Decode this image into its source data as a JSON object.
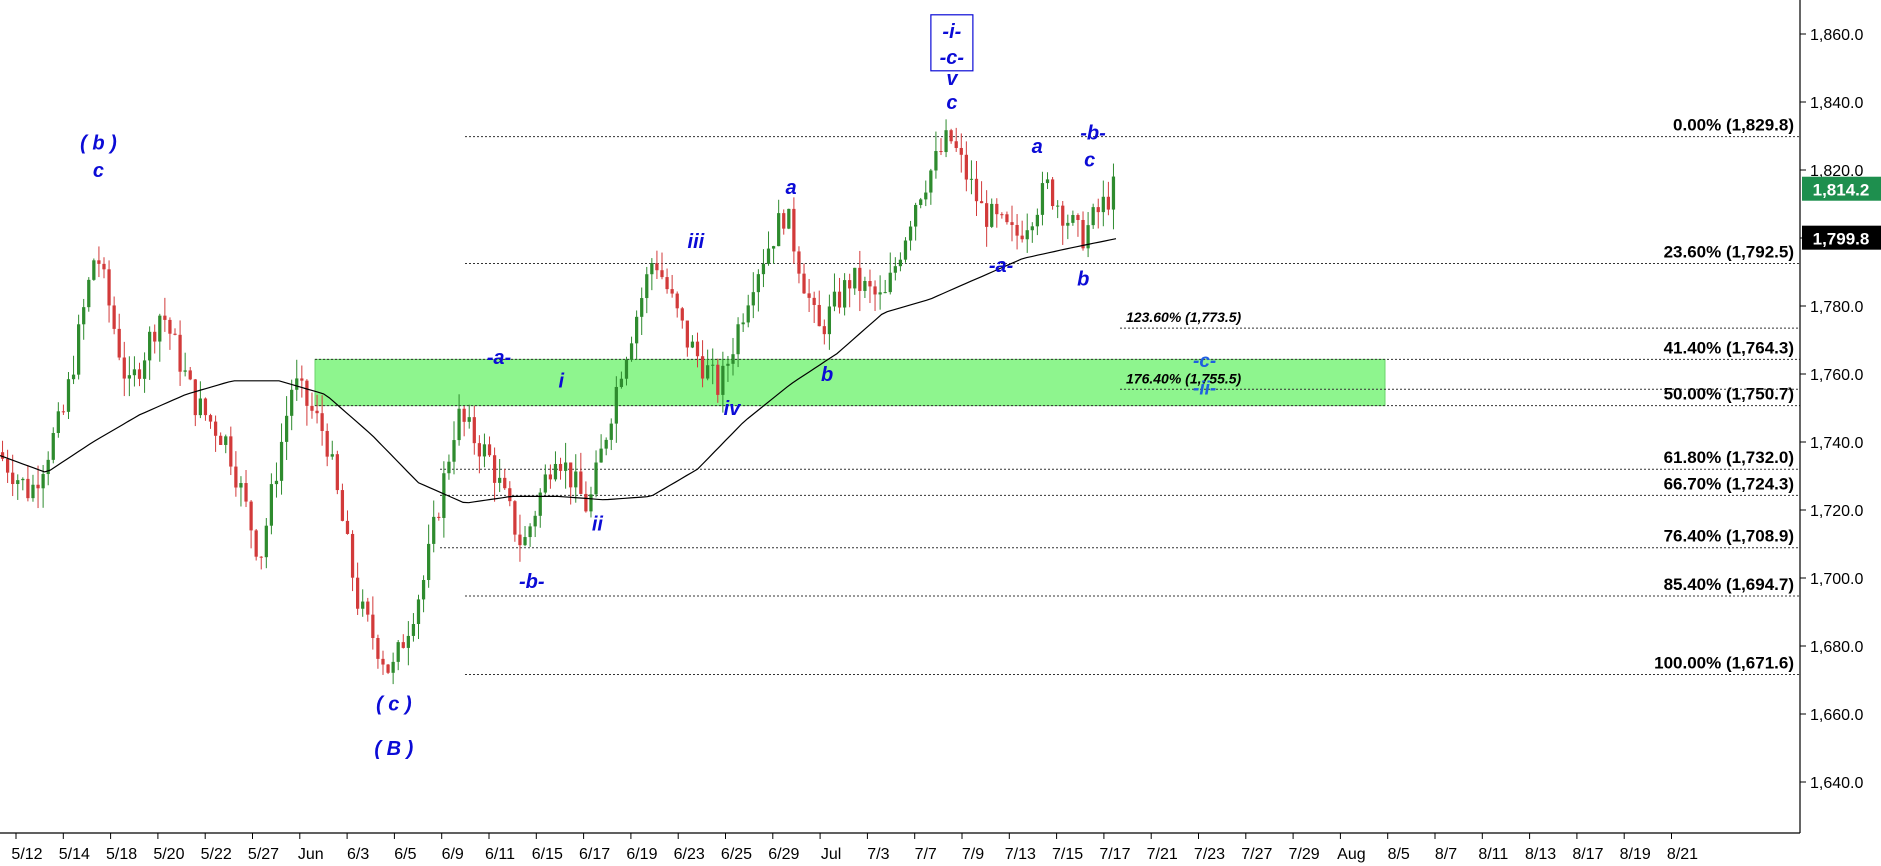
{
  "chart_data": {
    "type": "line",
    "colors": {
      "up": "#2e8b2e",
      "down": "#d23a3a",
      "zone": "#8ef58e",
      "waves": "#0b0bd6",
      "ma": "#000000"
    },
    "x_tick_labels": [
      "5/12",
      "5/14",
      "5/18",
      "5/20",
      "5/22",
      "5/27",
      "Jun",
      "6/3",
      "6/5",
      "6/9",
      "6/11",
      "6/15",
      "6/17",
      "6/19",
      "6/23",
      "6/25",
      "6/29",
      "Jul",
      "7/3",
      "7/7",
      "7/9",
      "7/13",
      "7/15",
      "7/17",
      "7/21",
      "7/23",
      "7/27",
      "7/29",
      "Aug",
      "8/5",
      "8/7",
      "8/11",
      "8/13",
      "8/17",
      "8/19",
      "8/21"
    ],
    "ylim": [
      1625,
      1870
    ],
    "y_ticks": [
      1640,
      1660,
      1680,
      1700,
      1720,
      1740,
      1760,
      1780,
      1800,
      1820,
      1840,
      1860
    ],
    "y_tick_labels": [
      "1,640.0",
      "1,660.0",
      "1,680.0",
      "1,700.0",
      "1,720.0",
      "1,740.0",
      "1,760.0",
      "1,780.0",
      "1,800.0",
      "1,820.0",
      "1,840.0",
      "1,860.0"
    ],
    "price_path": [
      {
        "x": 0,
        "y": 1737
      },
      {
        "x": 1,
        "y": 1725
      },
      {
        "x": 2,
        "y": 1748
      },
      {
        "x": 3,
        "y": 1797
      },
      {
        "x": 4,
        "y": 1755
      },
      {
        "x": 5,
        "y": 1779
      },
      {
        "x": 6,
        "y": 1752
      },
      {
        "x": 7,
        "y": 1740
      },
      {
        "x": 8,
        "y": 1706
      },
      {
        "x": 9,
        "y": 1758
      },
      {
        "x": 10,
        "y": 1742
      },
      {
        "x": 11,
        "y": 1692
      },
      {
        "x": 12,
        "y": 1671.6
      },
      {
        "x": 13,
        "y": 1700
      },
      {
        "x": 14,
        "y": 1748
      },
      {
        "x": 15,
        "y": 1735
      },
      {
        "x": 16,
        "y": 1708.9
      },
      {
        "x": 17,
        "y": 1738
      },
      {
        "x": 18,
        "y": 1720
      },
      {
        "x": 19,
        "y": 1762
      },
      {
        "x": 20,
        "y": 1795
      },
      {
        "x": 21,
        "y": 1770
      },
      {
        "x": 22,
        "y": 1755.5
      },
      {
        "x": 23,
        "y": 1788
      },
      {
        "x": 24,
        "y": 1808
      },
      {
        "x": 25,
        "y": 1772
      },
      {
        "x": 26,
        "y": 1788
      },
      {
        "x": 27,
        "y": 1781
      },
      {
        "x": 28,
        "y": 1812
      },
      {
        "x": 29,
        "y": 1829.8
      },
      {
        "x": 30,
        "y": 1808
      },
      {
        "x": 31,
        "y": 1800
      },
      {
        "x": 32,
        "y": 1815
      },
      {
        "x": 33,
        "y": 1799.8
      },
      {
        "x": 34,
        "y": 1814.2
      }
    ],
    "moving_average": [
      {
        "x": 0,
        "y": 1736
      },
      {
        "x": 1,
        "y": 1731
      },
      {
        "x": 2,
        "y": 1740
      },
      {
        "x": 3,
        "y": 1748
      },
      {
        "x": 4,
        "y": 1754
      },
      {
        "x": 5,
        "y": 1758
      },
      {
        "x": 6,
        "y": 1758
      },
      {
        "x": 7,
        "y": 1754
      },
      {
        "x": 8,
        "y": 1742
      },
      {
        "x": 9,
        "y": 1728
      },
      {
        "x": 10,
        "y": 1722
      },
      {
        "x": 11,
        "y": 1724
      },
      {
        "x": 12,
        "y": 1724
      },
      {
        "x": 13,
        "y": 1723
      },
      {
        "x": 14,
        "y": 1724
      },
      {
        "x": 15,
        "y": 1732
      },
      {
        "x": 16,
        "y": 1746
      },
      {
        "x": 17,
        "y": 1757
      },
      {
        "x": 18,
        "y": 1766
      },
      {
        "x": 19,
        "y": 1778
      },
      {
        "x": 20,
        "y": 1782
      },
      {
        "x": 21,
        "y": 1788
      },
      {
        "x": 22,
        "y": 1794
      },
      {
        "x": 23,
        "y": 1797
      },
      {
        "x": 24,
        "y": 1799.8
      }
    ],
    "ma_start_index": 10,
    "fib_levels": [
      {
        "label": "0.00% (1,829.8)",
        "value": 1829.8
      },
      {
        "label": "23.60% (1,792.5)",
        "value": 1792.5
      },
      {
        "label": "41.40% (1,764.3)",
        "value": 1764.3
      },
      {
        "label": "50.00% (1,750.7)",
        "value": 1750.7
      },
      {
        "label": "61.80% (1,732.0)",
        "value": 1732.0
      },
      {
        "label": "66.70% (1,724.3)",
        "value": 1724.3
      },
      {
        "label": "76.40% (1,708.9)",
        "value": 1708.9
      },
      {
        "label": "85.40% (1,694.7)",
        "value": 1694.7
      },
      {
        "label": "100.00% (1,671.6)",
        "value": 1671.6
      }
    ],
    "extension_levels": [
      {
        "label": "123.60% (1,773.5)",
        "value": 1773.5
      },
      {
        "label": "176.40% (1,755.5)",
        "value": 1755.5
      }
    ],
    "target_zone": {
      "low": 1750.7,
      "high": 1764.3
    },
    "price_badges": [
      {
        "label": "1,814.2",
        "value": 1814.2,
        "color": "#1e8f4e"
      },
      {
        "label": "1,799.8",
        "value": 1799.8,
        "color": "#000000"
      }
    ],
    "wave_labels": [
      {
        "text": "( b )",
        "x": 3,
        "y": 1826
      },
      {
        "text": "c",
        "x": 3,
        "y": 1818
      },
      {
        "text": "( c )",
        "x": 12,
        "y": 1661
      },
      {
        "text": "( B )",
        "x": 12,
        "y": 1648
      },
      {
        "text": "-a-",
        "x": 15.2,
        "y": 1763
      },
      {
        "text": "-b-",
        "x": 16.2,
        "y": 1697
      },
      {
        "text": "i",
        "x": 17.1,
        "y": 1756
      },
      {
        "text": "ii",
        "x": 18.2,
        "y": 1714
      },
      {
        "text": "iii",
        "x": 21.2,
        "y": 1797
      },
      {
        "text": "iv",
        "x": 22.3,
        "y": 1748
      },
      {
        "text": "a",
        "x": 24.1,
        "y": 1813
      },
      {
        "text": "b",
        "x": 25.2,
        "y": 1758
      },
      {
        "text": "v",
        "x": 29,
        "y": 1845
      },
      {
        "text": "c",
        "x": 29,
        "y": 1838
      },
      {
        "text": "-a-",
        "x": 30.5,
        "y": 1790
      },
      {
        "text": "a",
        "x": 31.6,
        "y": 1825
      },
      {
        "text": "b",
        "x": 33,
        "y": 1786
      },
      {
        "text": "-b-",
        "x": 33.3,
        "y": 1829
      },
      {
        "text": "c",
        "x": 33.2,
        "y": 1821
      },
      {
        "text": "-c-",
        "x": 36.7,
        "y": 1762
      },
      {
        "text": "-ii-",
        "x": 36.7,
        "y": 1754
      }
    ],
    "boxed_label": {
      "lines": [
        "-i-",
        "-c-"
      ],
      "x": 29,
      "y": 1858
    }
  }
}
